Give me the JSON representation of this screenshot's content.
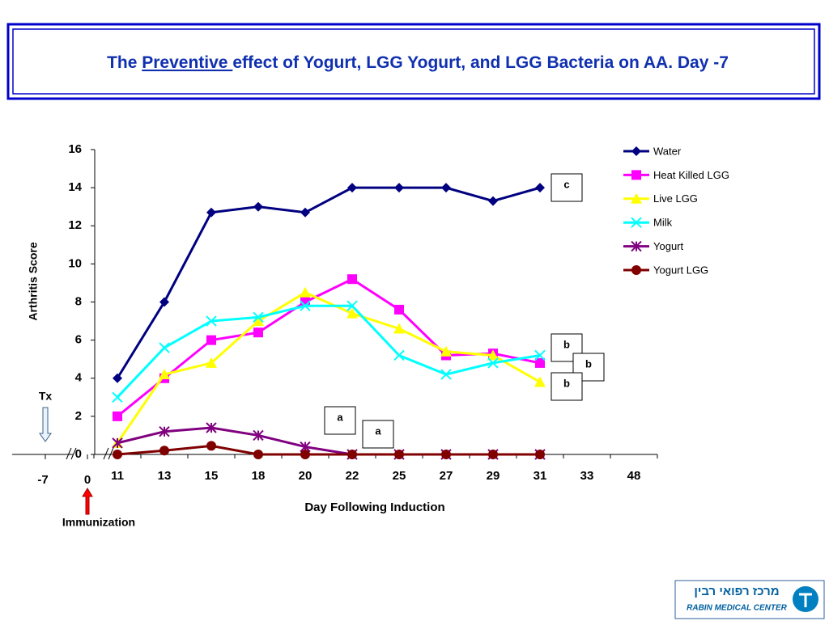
{
  "chart_data": {
    "type": "line",
    "title_parts": [
      "The ",
      "Preventive ",
      "effect of Yogurt, LGG Yogurt, and LGG Bacteria on AA. Day -7"
    ],
    "x_label": "Day Following Induction",
    "y_label": "Arthritis Score",
    "categories": [
      "11",
      "13",
      "15",
      "18",
      "20",
      "22",
      "25",
      "27",
      "29",
      "31",
      "33",
      "48"
    ],
    "pre_labels": [
      "-7",
      "0"
    ],
    "tx_label": "Tx",
    "immunization_label": "Immunization",
    "ylim": [
      0,
      16
    ],
    "yticks": [
      0,
      2,
      4,
      6,
      8,
      10,
      12,
      14,
      16
    ],
    "series": [
      {
        "name": "Water",
        "color": "#000080",
        "marker": "diamond",
        "values": [
          4,
          8,
          12.7,
          13,
          12.7,
          14,
          14,
          14,
          13.3,
          14,
          null,
          null
        ]
      },
      {
        "name": "Heat Killed LGG",
        "color": "#ff00ff",
        "marker": "square",
        "values": [
          2,
          4,
          6,
          6.4,
          8,
          9.2,
          7.6,
          5.2,
          5.3,
          4.8,
          null,
          null
        ]
      },
      {
        "name": "Live LGG",
        "color": "#ffff00",
        "marker": "triangle",
        "values": [
          0.6,
          4.2,
          4.8,
          7,
          8.5,
          7.4,
          6.6,
          5.4,
          5.2,
          3.8,
          null,
          null
        ]
      },
      {
        "name": "Milk",
        "color": "#00ffff",
        "marker": "x",
        "values": [
          3,
          5.6,
          7,
          7.2,
          7.8,
          7.8,
          5.2,
          4.2,
          4.8,
          5.2,
          null,
          null
        ]
      },
      {
        "name": "Yogurt",
        "color": "#800080",
        "marker": "star",
        "values": [
          0.6,
          1.2,
          1.4,
          1,
          0.4,
          0,
          0,
          0,
          0,
          0,
          null,
          null
        ]
      },
      {
        "name": "Yogurt LGG",
        "color": "#800000",
        "marker": "circle",
        "values": [
          0,
          0.2,
          0.45,
          0,
          0,
          0,
          0,
          0,
          0,
          0,
          null,
          null
        ]
      }
    ],
    "annotations": [
      "c",
      "b",
      "b",
      "b",
      "a",
      "a"
    ],
    "logo": {
      "hebrew": "מרכז רפואי רבין",
      "english": "RABIN MEDICAL CENTER"
    }
  }
}
